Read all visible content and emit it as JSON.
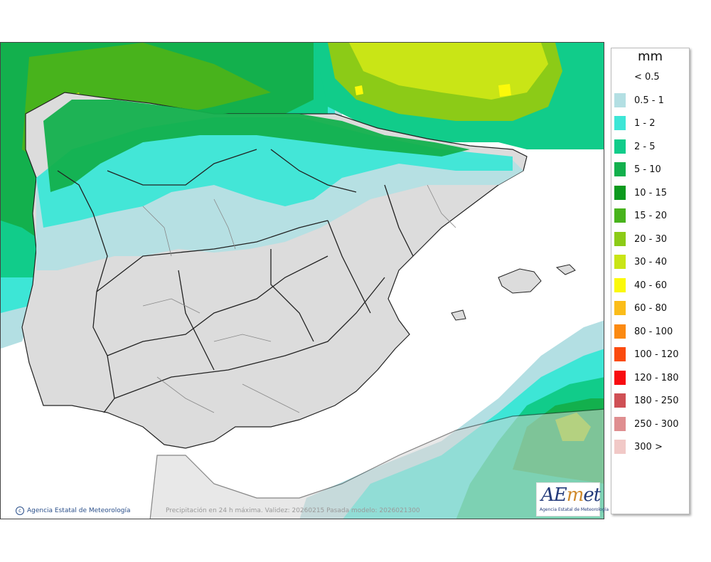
{
  "legend": {
    "unit": "mm",
    "items": [
      {
        "label": "< 0.5",
        "color": "#ffffff"
      },
      {
        "label": "0.5 - 1",
        "color": "#b3dfe3"
      },
      {
        "label": "1 - 2",
        "color": "#3de6d6"
      },
      {
        "label": "2 - 5",
        "color": "#11cc8a"
      },
      {
        "label": "5 - 10",
        "color": "#13b04d"
      },
      {
        "label": "10 - 15",
        "color": "#0c9a1e"
      },
      {
        "label": "15 - 20",
        "color": "#48b31c"
      },
      {
        "label": "20 - 30",
        "color": "#8ccb17"
      },
      {
        "label": "30 - 40",
        "color": "#c9e516"
      },
      {
        "label": "40 - 60",
        "color": "#fbf90a"
      },
      {
        "label": "60 - 80",
        "color": "#fbbd1a"
      },
      {
        "label": "80 - 100",
        "color": "#fb8a12"
      },
      {
        "label": "100 - 120",
        "color": "#fb4b0e"
      },
      {
        "label": "120 - 180",
        "color": "#f80c10"
      },
      {
        "label": "180 - 250",
        "color": "#cf5055"
      },
      {
        "label": "250 - 300",
        "color": "#df8e90"
      },
      {
        "label": "300 >",
        "color": "#f1c9c7"
      }
    ]
  },
  "credit": "Agencia Estatal de Meteorología",
  "caption": "Precipitación en 24 h máxima. Validez: 20260215 Pasada modelo: 2026021300",
  "logo": {
    "text_a": "AE",
    "text_m": "m",
    "text_e": "et",
    "subtitle": "Agencia Estatal de Meteorología"
  }
}
